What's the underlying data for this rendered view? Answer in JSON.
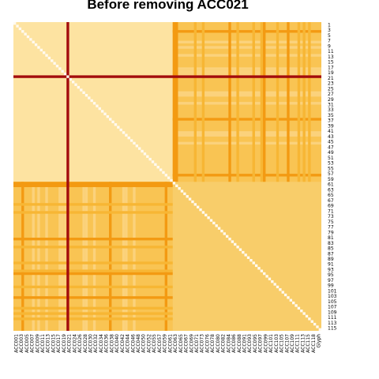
{
  "chart_data": {
    "type": "heatmap",
    "title": "Before removing ACC021",
    "matrix_size": 116,
    "diagonal_value": "high",
    "highlighted_row_col": "ACC021",
    "clusters": [
      {
        "members_from": "ACC001",
        "members_to": "ACC060",
        "level": "high similarity block"
      },
      {
        "members_from": "ACC062",
        "members_to": "Glyph",
        "level": "moderate similarity block"
      }
    ],
    "color_scale": {
      "low": "#fde3a1",
      "mid": "#f9c453",
      "high": "#f39a12",
      "diagonal": "#fffaf0",
      "highlight": "#a30c0c"
    },
    "x_tick_labels": [
      "ACC001",
      "ACC003",
      "ACC005",
      "ACC007",
      "ACC009",
      "ACC011",
      "ACC013",
      "ACC015",
      "ACC017",
      "ACC019",
      "ACC021",
      "ACC024",
      "ACC026",
      "ACC028",
      "ACC030",
      "ACC032",
      "ACC034",
      "ACC036",
      "ACC038",
      "ACC040",
      "ACC042",
      "ACC044",
      "ACC046",
      "ACC048",
      "ACC050",
      "ACC052",
      "ACC055",
      "ACC057",
      "ACC059",
      "ACC061",
      "ACC063",
      "ACC065",
      "ACC067",
      "ACC069",
      "ACC071",
      "ACC073",
      "ACC076",
      "ACC078",
      "ACC080",
      "ACC082",
      "ACC084",
      "ACC086",
      "ACC088",
      "ACC091",
      "ACC093",
      "ACC095",
      "ACC097",
      "ACC099",
      "ACC101",
      "ACC103",
      "ACC105",
      "ACC107",
      "ACC109",
      "ACC111",
      "ACC113",
      "ACC115",
      "ACC118",
      "Glyph"
    ],
    "y_tick_labels": [
      "1",
      "3",
      "5",
      "7",
      "9",
      "11",
      "13",
      "15",
      "17",
      "19",
      "21",
      "23",
      "25",
      "27",
      "29",
      "31",
      "33",
      "35",
      "37",
      "39",
      "41",
      "43",
      "45",
      "47",
      "49",
      "51",
      "53",
      "55",
      "57",
      "59",
      "61",
      "63",
      "65",
      "67",
      "69",
      "71",
      "73",
      "75",
      "77",
      "79",
      "81",
      "83",
      "85",
      "87",
      "89",
      "91",
      "93",
      "95",
      "97",
      "99",
      "101",
      "103",
      "105",
      "107",
      "109",
      "111",
      "113",
      "115"
    ]
  }
}
